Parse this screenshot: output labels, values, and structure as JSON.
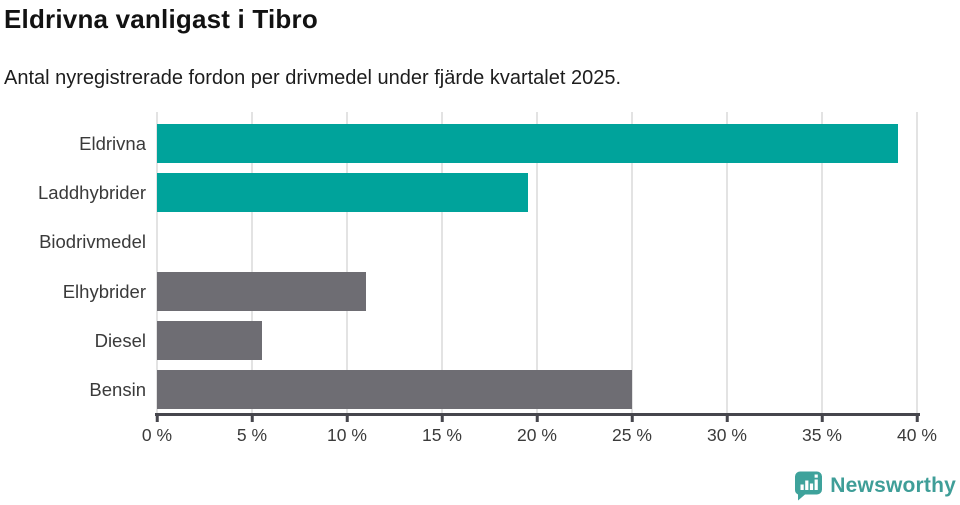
{
  "header": {
    "title": "Eldrivna vanligast i Tibro",
    "subtitle": "Antal nyregistrerade fordon per drivmedel under fjärde kvartalet 2025."
  },
  "chart_data": {
    "type": "bar",
    "orientation": "horizontal",
    "title": "Eldrivna vanligast i Tibro",
    "subtitle": "Antal nyregistrerade fordon per drivmedel under fjärde kvartalet 2025.",
    "categories": [
      "Eldrivna",
      "Laddhybrider",
      "Biodrivmedel",
      "Elhybrider",
      "Diesel",
      "Bensin"
    ],
    "values": [
      39,
      19.5,
      0,
      11,
      5.5,
      25
    ],
    "bar_colors": [
      "#00a39b",
      "#00a39b",
      "#00a39b",
      "#6e6d73",
      "#6e6d73",
      "#6e6d73"
    ],
    "xlim": [
      0,
      40
    ],
    "x_ticks": [
      0,
      5,
      10,
      15,
      20,
      25,
      30,
      35,
      40
    ],
    "tick_suffix": " %",
    "grid": true,
    "legend": "none",
    "unit": "percent"
  },
  "colors": {
    "teal": "#00a39b",
    "gray": "#6e6d73",
    "grid": "#e3e3e3",
    "axis": "#46464d",
    "logo": "#3f9e98"
  },
  "footer": {
    "brand": "Newsworthy",
    "brand_icon": "bar-chart-speech-bubble-icon"
  }
}
